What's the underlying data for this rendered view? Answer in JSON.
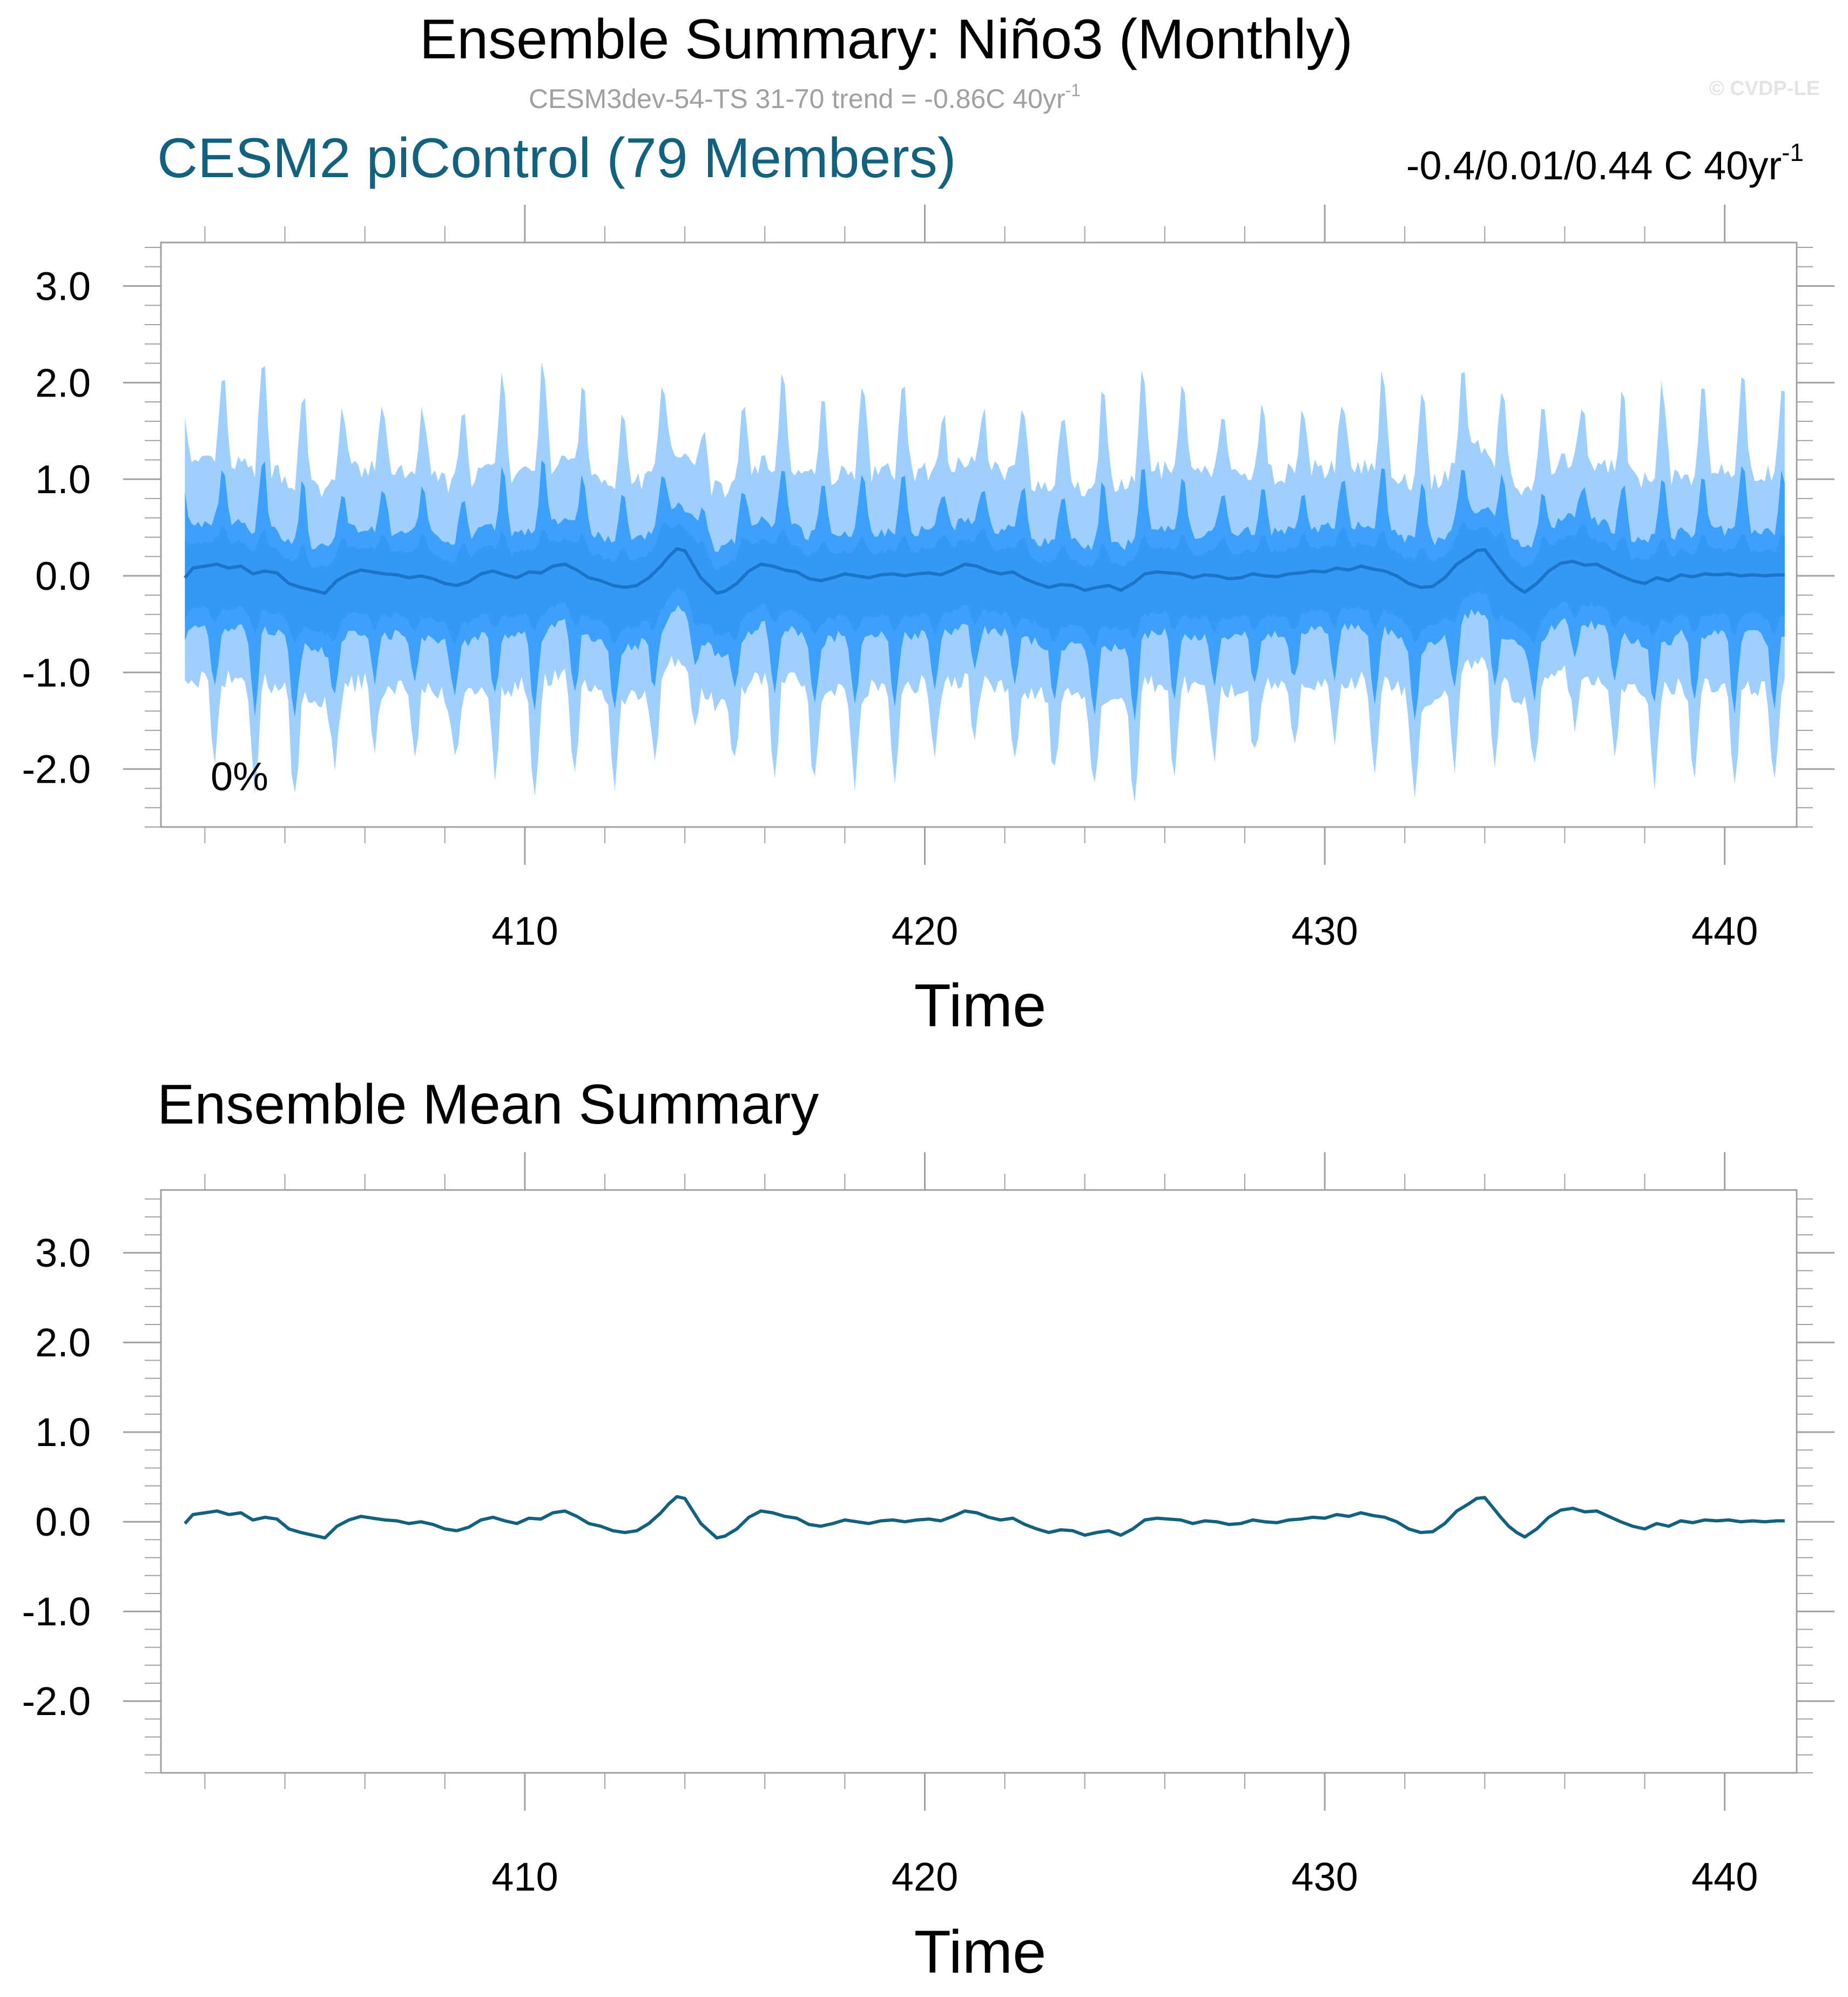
{
  "header": {
    "title": "Ensemble Summary: Niño3 (Monthly)",
    "subtitle_main": "CESM3dev-54-TS 31-70 trend = -0.86C 40yr",
    "subtitle_sup": "-1",
    "copyright": "© CVDP-LE"
  },
  "colors": {
    "outer_band": "#9fcffc",
    "inner_band": "#3da0fa",
    "core_band": "#2b8ff0",
    "mean_line_top": "#1c74c8",
    "mean_line_bottom": "#11617f",
    "member_label": "#11617f",
    "frame": "#a0a0a0",
    "subtitle": "#a0a0a0"
  },
  "chart_data": [
    {
      "type": "area",
      "panel_label": "CESM2 piControl (79 Members)",
      "trend_text": "-0.4/0.01/0.44 C 40yr",
      "trend_sup": "-1",
      "annotation": "0%",
      "xlabel": "Time",
      "ylabel": "",
      "xlim": [
        400.9,
        441.8
      ],
      "ylim": [
        -2.6,
        3.45
      ],
      "xticks": [
        410,
        420,
        430,
        440
      ],
      "yticks": [
        3.0,
        2.0,
        1.0,
        0.0,
        -1.0,
        -2.0
      ],
      "ytick_labels": [
        "3.0",
        "2.0",
        "1.0",
        "0.0",
        "-1.0",
        "-2.0"
      ],
      "time_range": [
        401.5,
        441.5
      ],
      "series": [
        {
          "role": "outer envelope (min/max of members)",
          "upper_peak_max": 2.2,
          "lower_trough_min": -2.3
        },
        {
          "role": "inner spread band",
          "upper_peak_max": 1.2,
          "lower_trough_min": -1.6
        },
        {
          "role": "ensemble mean",
          "range": [
            -0.2,
            0.28
          ]
        }
      ]
    },
    {
      "type": "line",
      "panel_label": "Ensemble Mean Summary",
      "xlabel": "Time",
      "ylabel": "",
      "xlim": [
        400.9,
        441.8
      ],
      "ylim": [
        -2.8,
        3.7
      ],
      "xticks": [
        410,
        420,
        430,
        440
      ],
      "yticks": [
        3.0,
        2.0,
        1.0,
        0.0,
        -1.0,
        -2.0
      ],
      "ytick_labels": [
        "3.0",
        "2.0",
        "1.0",
        "0.0",
        "-1.0",
        "-2.0"
      ],
      "series": [
        {
          "role": "ensemble mean",
          "x": [
            401.5,
            401.7,
            402.0,
            402.3,
            402.6,
            402.9,
            403.2,
            403.5,
            403.8,
            404.1,
            404.4,
            404.7,
            405.0,
            405.3,
            405.6,
            405.9,
            406.2,
            406.5,
            406.8,
            407.1,
            407.4,
            407.7,
            408.0,
            408.3,
            408.6,
            408.9,
            409.2,
            409.5,
            409.8,
            410.1,
            410.4,
            410.7,
            411.0,
            411.3,
            411.6,
            411.9,
            412.2,
            412.5,
            412.8,
            413.1,
            413.4,
            413.6,
            413.8,
            414.0,
            414.2,
            414.4,
            414.6,
            414.8,
            415.0,
            415.3,
            415.6,
            415.9,
            416.2,
            416.5,
            416.8,
            417.1,
            417.4,
            417.7,
            418.0,
            418.3,
            418.6,
            418.9,
            419.2,
            419.5,
            419.8,
            420.1,
            420.4,
            420.7,
            421.0,
            421.3,
            421.6,
            421.9,
            422.2,
            422.5,
            422.8,
            423.1,
            423.4,
            423.7,
            424.0,
            424.3,
            424.6,
            424.9,
            425.2,
            425.5,
            425.8,
            426.1,
            426.4,
            426.7,
            427.0,
            427.3,
            427.6,
            427.9,
            428.2,
            428.5,
            428.8,
            429.1,
            429.4,
            429.7,
            430.0,
            430.3,
            430.6,
            430.9,
            431.2,
            431.5,
            431.8,
            432.1,
            432.4,
            432.7,
            433.0,
            433.3,
            433.6,
            433.8,
            434.0,
            434.2,
            434.4,
            434.6,
            434.8,
            435.0,
            435.3,
            435.6,
            435.9,
            436.2,
            436.5,
            436.8,
            437.1,
            437.4,
            437.7,
            438.0,
            438.3,
            438.6,
            438.9,
            439.2,
            439.5,
            439.8,
            440.1,
            440.4,
            440.7,
            441.0,
            441.3,
            441.5
          ],
          "values": [
            -0.02,
            0.08,
            0.1,
            0.12,
            0.08,
            0.1,
            0.02,
            0.05,
            0.03,
            -0.08,
            -0.12,
            -0.15,
            -0.18,
            -0.05,
            0.02,
            0.06,
            0.04,
            0.02,
            0.01,
            -0.02,
            0.0,
            -0.03,
            -0.08,
            -0.1,
            -0.06,
            0.02,
            0.05,
            0.01,
            -0.02,
            0.04,
            0.03,
            0.1,
            0.12,
            0.06,
            -0.02,
            -0.05,
            -0.1,
            -0.12,
            -0.1,
            -0.02,
            0.1,
            0.2,
            0.28,
            0.26,
            0.12,
            -0.02,
            -0.1,
            -0.18,
            -0.16,
            -0.08,
            0.05,
            0.12,
            0.1,
            0.06,
            0.04,
            -0.03,
            -0.05,
            -0.02,
            0.02,
            0.0,
            -0.02,
            0.01,
            0.02,
            0.0,
            0.02,
            0.03,
            0.01,
            0.06,
            0.12,
            0.1,
            0.05,
            0.02,
            0.04,
            -0.03,
            -0.08,
            -0.12,
            -0.09,
            -0.1,
            -0.15,
            -0.12,
            -0.1,
            -0.15,
            -0.08,
            0.02,
            0.04,
            0.03,
            0.02,
            -0.02,
            0.01,
            0.0,
            -0.03,
            -0.02,
            0.02,
            0.0,
            -0.01,
            0.02,
            0.03,
            0.05,
            0.04,
            0.08,
            0.06,
            0.1,
            0.07,
            0.05,
            0.0,
            -0.08,
            -0.12,
            -0.11,
            -0.02,
            0.12,
            0.2,
            0.26,
            0.27,
            0.16,
            0.05,
            -0.05,
            -0.12,
            -0.17,
            -0.08,
            0.05,
            0.13,
            0.15,
            0.11,
            0.12,
            0.06,
            0.0,
            -0.05,
            -0.08,
            -0.02,
            -0.05,
            0.01,
            -0.01,
            0.02,
            0.01,
            0.02,
            0.0,
            0.01,
            0.0,
            0.01,
            0.01
          ]
        }
      ]
    }
  ]
}
